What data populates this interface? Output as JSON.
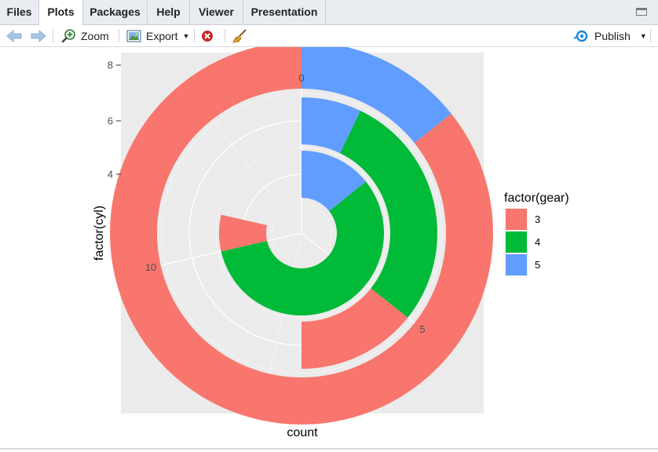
{
  "tabs": [
    {
      "label": "Files",
      "active": false
    },
    {
      "label": "Plots",
      "active": true
    },
    {
      "label": "Packages",
      "active": false
    },
    {
      "label": "Help",
      "active": false
    },
    {
      "label": "Viewer",
      "active": false
    },
    {
      "label": "Presentation",
      "active": false
    }
  ],
  "toolbar": {
    "back_icon": "arrow-left-icon",
    "forward_icon": "arrow-right-icon",
    "zoom_label": "Zoom",
    "export_label": "Export",
    "remove_icon": "remove-plot-icon",
    "clear_icon": "broom-icon",
    "publish_label": "Publish"
  },
  "colors": {
    "gear3": "#F8766D",
    "gear4": "#00BA38",
    "gear5": "#619CFF",
    "panel": "#EBEBEB",
    "tab_bar": "#E9EDF1",
    "accent": "#1E88D6"
  },
  "chart_data": {
    "type": "pie",
    "subtype": "polar-stacked-bar",
    "xlabel": "factor(cyl)",
    "ylabel": "count",
    "x_categories": [
      "4",
      "6",
      "8"
    ],
    "x_tick_labels": [
      "4",
      "6",
      "8"
    ],
    "angle_ticks": [
      0,
      5,
      10
    ],
    "angle_range": [
      0,
      14
    ],
    "grid": true,
    "legend": {
      "title": "factor(gear)",
      "position": "right",
      "entries": [
        "3",
        "4",
        "5"
      ]
    },
    "series": [
      {
        "name": "3",
        "values": [
          1,
          2,
          12
        ]
      },
      {
        "name": "4",
        "values": [
          8,
          4,
          0
        ]
      },
      {
        "name": "5",
        "values": [
          2,
          1,
          2
        ]
      }
    ]
  }
}
